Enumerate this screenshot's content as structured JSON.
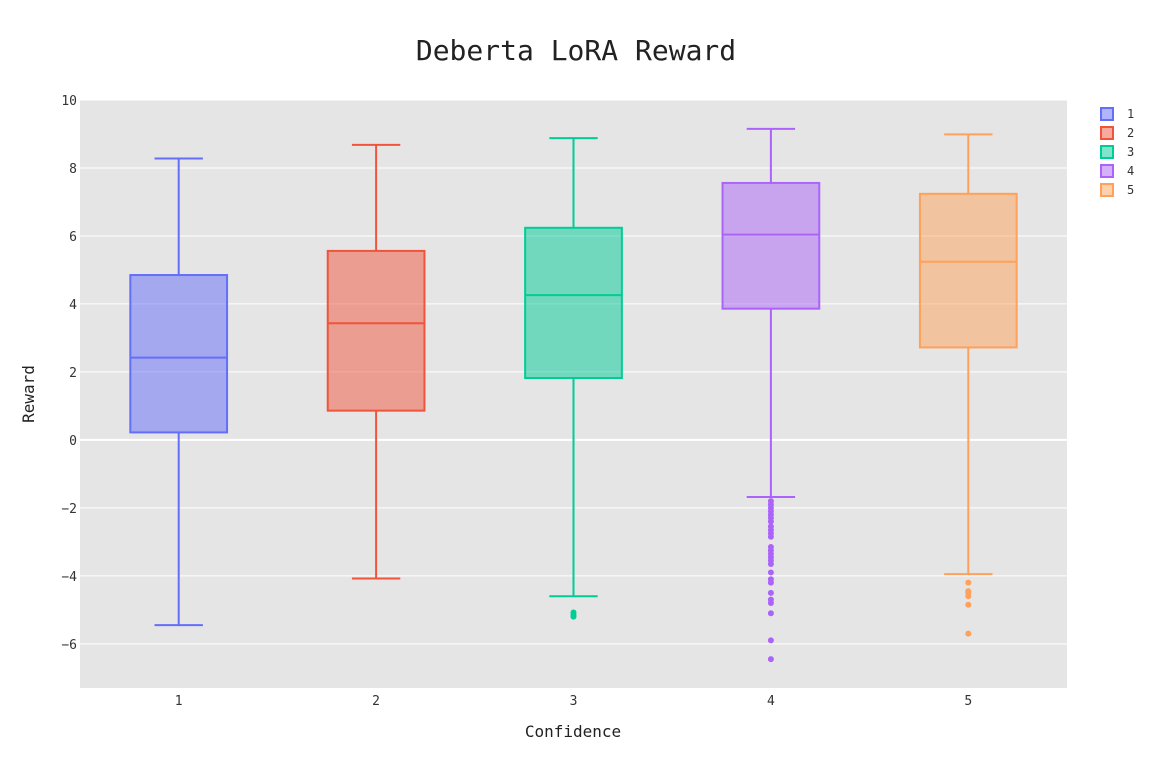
{
  "chart_data": {
    "type": "box",
    "title": "Deberta LoRA Reward",
    "xlabel": "Confidence",
    "ylabel": "Reward",
    "ylim": [
      -7.3,
      10
    ],
    "yticks": [
      10,
      8,
      6,
      4,
      2,
      0,
      -2,
      -4,
      -6
    ],
    "ytick_labels": [
      "10",
      "8",
      "6",
      "4",
      "2",
      "0",
      "−2",
      "−4",
      "−6"
    ],
    "grid": true,
    "legend_position": "top-right",
    "background": "#e5e5e5",
    "series": [
      {
        "name": "1",
        "category": "1",
        "color": "#636efa",
        "lower_fence": -5.45,
        "q1": 0.22,
        "median": 2.42,
        "q3": 4.85,
        "upper_fence": 8.28,
        "outliers": []
      },
      {
        "name": "2",
        "category": "2",
        "color": "#ef553b",
        "lower_fence": -4.08,
        "q1": 0.86,
        "median": 3.43,
        "q3": 5.56,
        "upper_fence": 8.68,
        "outliers": []
      },
      {
        "name": "3",
        "category": "3",
        "color": "#00cc96",
        "lower_fence": -4.6,
        "q1": 1.82,
        "median": 4.26,
        "q3": 6.24,
        "upper_fence": 8.88,
        "outliers": [
          -5.08,
          -5.15,
          -5.2
        ]
      },
      {
        "name": "4",
        "category": "4",
        "color": "#ab63fa",
        "lower_fence": -1.68,
        "q1": 3.86,
        "median": 6.04,
        "q3": 7.56,
        "upper_fence": 9.15,
        "outliers": [
          -1.8,
          -1.9,
          -2.0,
          -2.1,
          -2.2,
          -2.3,
          -2.4,
          -2.55,
          -2.65,
          -2.75,
          -2.85,
          -3.15,
          -3.25,
          -3.35,
          -3.45,
          -3.55,
          -3.65,
          -3.9,
          -4.1,
          -4.2,
          -4.5,
          -4.7,
          -4.8,
          -5.1,
          -5.9,
          -6.45
        ]
      },
      {
        "name": "5",
        "category": "5",
        "color": "#ffa15a",
        "lower_fence": -3.95,
        "q1": 2.72,
        "median": 5.24,
        "q3": 7.24,
        "upper_fence": 8.99,
        "outliers": [
          -4.2,
          -4.45,
          -4.5,
          -4.6,
          -4.85,
          -5.7
        ]
      }
    ]
  }
}
